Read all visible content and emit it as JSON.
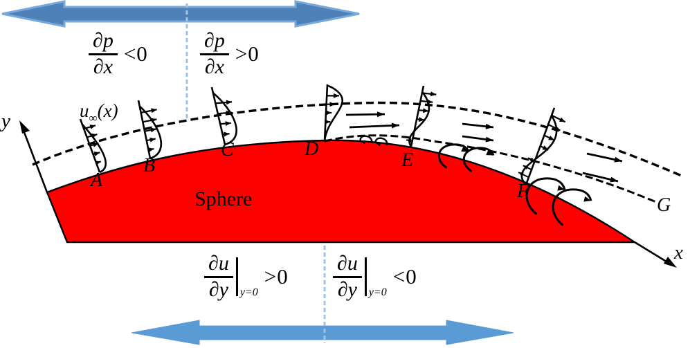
{
  "colors": {
    "arrow_fill": "#4e81b8",
    "arrow_edge": "#77a9d9",
    "arrow_fill_bottom": "#5b9bd5",
    "divider": "#9dc3e6",
    "sphere_fill": "#fd0000",
    "ink": "#000000"
  },
  "labels": {
    "sphere": "Sphere",
    "x_axis": "x",
    "y_axis": "y",
    "u": "u",
    "u_sub": "∞",
    "u_arg": "(x)"
  },
  "points": [
    "A",
    "B",
    "C",
    "D",
    "E",
    "F",
    "G"
  ],
  "equations": {
    "dp_neg": {
      "num": "∂p",
      "den": "∂x",
      "rel": "<0"
    },
    "dp_pos": {
      "num": "∂p",
      "den": "∂x",
      "rel": ">0"
    },
    "dudy_pos": {
      "num": "∂u",
      "den": "∂y",
      "cond": "y=0",
      "rel": ">0"
    },
    "dudy_neg": {
      "num": "∂u",
      "den": "∂y",
      "cond": "y=0",
      "rel": "<0"
    }
  }
}
